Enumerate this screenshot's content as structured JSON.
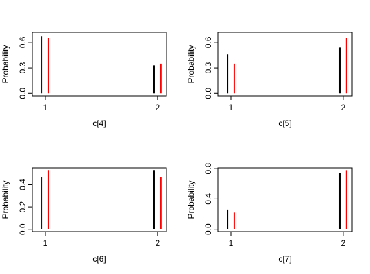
{
  "chart_data": [
    {
      "type": "bar",
      "xlabel": "c[4]",
      "ylabel": "Probability",
      "x": [
        1,
        2
      ],
      "series": [
        {
          "color": "#000000",
          "values": [
            0.67,
            0.33
          ]
        },
        {
          "color": "#ff0000",
          "values": [
            0.65,
            0.35
          ]
        }
      ],
      "xlim": [
        0.884,
        2.08
      ],
      "xticks": [
        1,
        2
      ],
      "ylim": [
        -0.03,
        0.72
      ],
      "yticks": [
        {
          "value": 0,
          "label": "0.0"
        },
        0.3,
        0.6
      ]
    },
    {
      "type": "bar",
      "xlabel": "c[5]",
      "ylabel": "Probability",
      "x": [
        1,
        2
      ],
      "series": [
        {
          "color": "#000000",
          "values": [
            0.46,
            0.54
          ]
        },
        {
          "color": "#ff0000",
          "values": [
            0.35,
            0.65
          ]
        }
      ],
      "xlim": [
        0.884,
        2.08
      ],
      "xticks": [
        1,
        2
      ],
      "ylim": [
        -0.03,
        0.72
      ],
      "yticks": [
        {
          "value": 0,
          "label": "0.0"
        },
        0.3,
        0.6
      ]
    },
    {
      "type": "bar",
      "xlabel": "c[6]",
      "ylabel": "Probability",
      "x": [
        1,
        2
      ],
      "series": [
        {
          "color": "#000000",
          "values": [
            0.47,
            0.53
          ]
        },
        {
          "color": "#ff0000",
          "values": [
            0.53,
            0.47
          ]
        }
      ],
      "xlim": [
        0.884,
        2.08
      ],
      "xticks": [
        1,
        2
      ],
      "ylim": [
        -0.02,
        0.55
      ],
      "yticks": [
        {
          "value": 0,
          "label": "0.0"
        },
        0.2,
        0.4
      ]
    },
    {
      "type": "bar",
      "xlabel": "c[7]",
      "ylabel": "Probability",
      "x": [
        1,
        2
      ],
      "series": [
        {
          "color": "#000000",
          "values": [
            0.26,
            0.74
          ]
        },
        {
          "color": "#ff0000",
          "values": [
            0.22,
            0.78
          ]
        }
      ],
      "xlim": [
        0.884,
        2.08
      ],
      "xticks": [
        1,
        2
      ],
      "ylim": [
        -0.03,
        0.81
      ],
      "yticks": [
        {
          "value": 0,
          "label": "0.0"
        },
        0.4,
        0.8
      ]
    }
  ]
}
